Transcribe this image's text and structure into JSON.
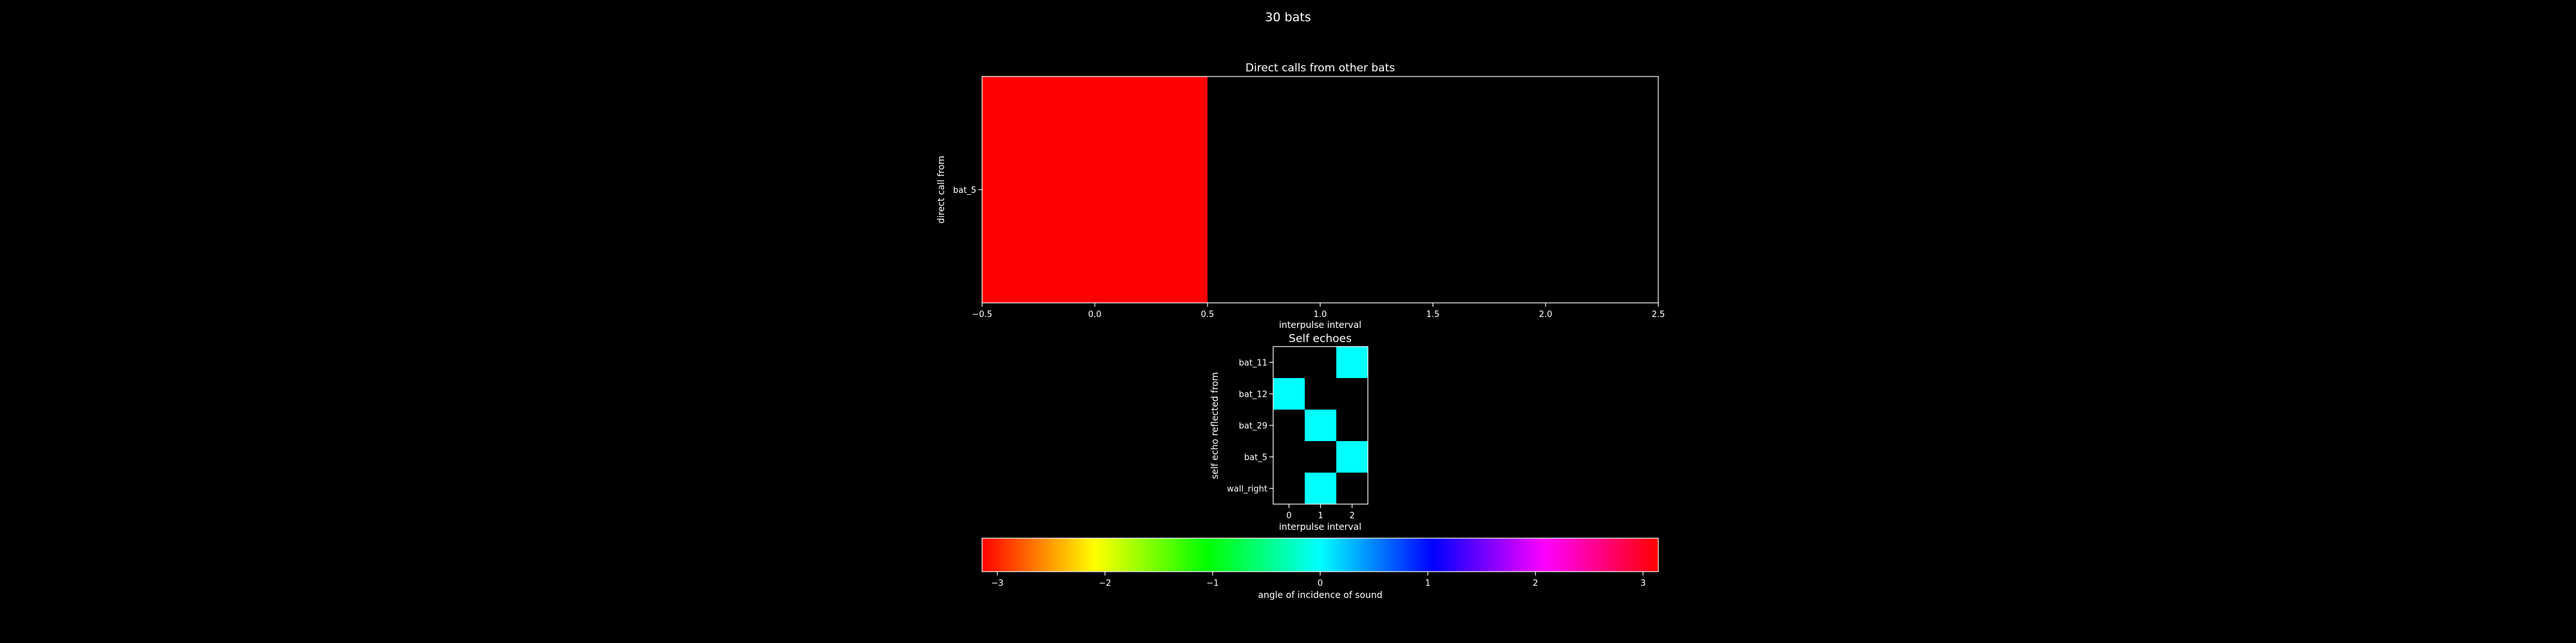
{
  "suptitle": "30 bats",
  "chart_data": [
    {
      "type": "heatmap",
      "title": "Direct calls from other bats",
      "xlabel": "interpulse interval",
      "ylabel": "direct call from",
      "xlim": [
        -0.5,
        2.5
      ],
      "xticks": [
        "−0.5",
        "0.0",
        "0.5",
        "1.0",
        "1.5",
        "2.0",
        "2.5"
      ],
      "xtick_values": [
        -0.5,
        0.0,
        0.5,
        1.0,
        1.5,
        2.0,
        2.5
      ],
      "rows": [
        "bat_5"
      ],
      "columns": [
        0,
        1,
        2
      ],
      "cells": [
        {
          "row": "bat_5",
          "col": 0,
          "angle": -3.14,
          "color": "#ff0000"
        }
      ]
    },
    {
      "type": "heatmap",
      "title": "Self echoes",
      "xlabel": "interpulse interval",
      "ylabel": "self echo reflected from",
      "xticks": [
        "0",
        "1",
        "2"
      ],
      "rows": [
        "bat_11",
        "bat_12",
        "bat_29",
        "bat_5",
        "wall_right"
      ],
      "columns": [
        0,
        1,
        2
      ],
      "cells": [
        {
          "row": "bat_11",
          "col": 2,
          "angle": 0.0,
          "color": "#00ffff"
        },
        {
          "row": "bat_12",
          "col": 0,
          "angle": 0.0,
          "color": "#00ffff"
        },
        {
          "row": "bat_29",
          "col": 1,
          "angle": 0.0,
          "color": "#00ffff"
        },
        {
          "row": "bat_5",
          "col": 2,
          "angle": 0.0,
          "color": "#00ffff"
        },
        {
          "row": "wall_right",
          "col": 1,
          "angle": 0.0,
          "color": "#00ffff"
        }
      ]
    }
  ],
  "colorbar": {
    "label": "angle of incidence of sound",
    "colormap": "hsv",
    "range": [
      -3.14159,
      3.14159
    ],
    "ticks": [
      "−3",
      "−2",
      "−1",
      "0",
      "1",
      "2",
      "3"
    ],
    "tick_values": [
      -3,
      -2,
      -1,
      0,
      1,
      2,
      3
    ]
  }
}
